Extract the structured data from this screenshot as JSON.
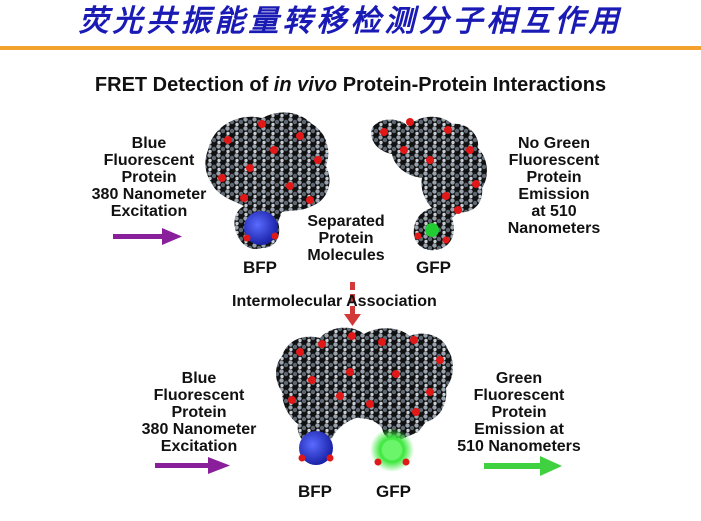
{
  "header": {
    "title": "荧光共振能量转移检测分子相互作用",
    "subtitle_pre": "FRET Detection of ",
    "subtitle_em": "in vivo",
    "subtitle_post": " Protein-Protein Interactions"
  },
  "top_panel": {
    "left_label": "Blue\nFluorescent\nProtein\n380 Nanometer\nExcitation",
    "middle_label": "Separated\nProtein\nMolecules",
    "right_label": "No Green\nFluorescent\nProtein\nEmission\nat 510\nNanometers",
    "bfp_label": "BFP",
    "gfp_label": "GFP"
  },
  "association_label": "Intermolecular Association",
  "bottom_panel": {
    "left_label": "Blue\nFluorescent\nProtein\n380 Nanometer\nExcitation",
    "right_label": "Green\nFluorescent\nProtein\nEmission at\n510 Nanometers",
    "bfp_label": "BFP",
    "gfp_label": "GFP"
  },
  "colors": {
    "title": "#1a1ab4",
    "rule": "#f2a12c",
    "excitation_arrow": "#8a1f9c",
    "emission_arrow": "#3fd13f",
    "association_arrow": "#d23a3a",
    "bfp": "#2233cc",
    "gfp": "#22cc33"
  }
}
